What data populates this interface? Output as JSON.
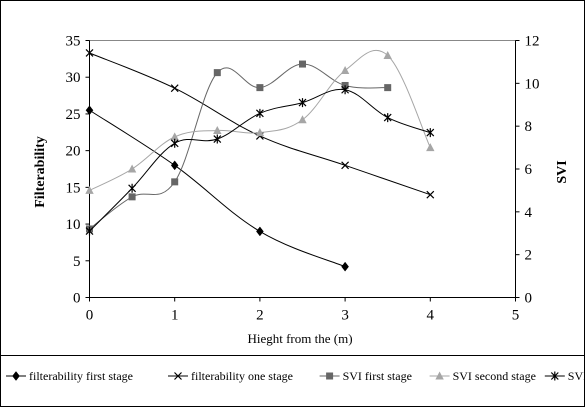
{
  "chart_data": {
    "type": "line",
    "xlabel": "Hieght from the (m)",
    "ylabel_left": "Filterability",
    "ylabel_right": "SVI",
    "xlim": [
      0,
      5
    ],
    "ylim_left": [
      0,
      35
    ],
    "ylim_right": [
      0,
      12
    ],
    "x_ticks": [
      "0",
      "1",
      "2",
      "3",
      "4",
      "5"
    ],
    "y_left_ticks": [
      "0",
      "5",
      "10",
      "15",
      "20",
      "25",
      "30",
      "35"
    ],
    "y_right_ticks": [
      "0",
      "2",
      "4",
      "6",
      "8",
      "10",
      "12"
    ],
    "grid": false,
    "legend_placement": "bottom",
    "series": [
      {
        "name": "filterability first stage",
        "axis": "left",
        "marker": "diamond",
        "color": "#000000",
        "points": [
          [
            0,
            25.5
          ],
          [
            1,
            18
          ],
          [
            2,
            9
          ],
          [
            3,
            4.2
          ]
        ]
      },
      {
        "name": "filterability one stage",
        "axis": "left",
        "marker": "x",
        "color": "#000000",
        "points": [
          [
            0,
            33.3
          ],
          [
            1,
            28.5
          ],
          [
            2,
            22
          ],
          [
            3,
            18
          ],
          [
            4,
            14
          ]
        ]
      },
      {
        "name": "SVI first stage",
        "axis": "right",
        "marker": "square",
        "color": "#666666",
        "points": [
          [
            0,
            3.2
          ],
          [
            0.5,
            4.7
          ],
          [
            1,
            5.4
          ],
          [
            1.5,
            10.5
          ],
          [
            2,
            9.8
          ],
          [
            2.5,
            10.9
          ],
          [
            3,
            9.9
          ],
          [
            3.5,
            9.8
          ]
        ]
      },
      {
        "name": "SVI second stage",
        "axis": "right",
        "marker": "triangle",
        "color": "#a6a6a6",
        "points": [
          [
            0,
            5
          ],
          [
            0.5,
            6
          ],
          [
            1,
            7.5
          ],
          [
            1.5,
            7.8
          ],
          [
            2,
            7.7
          ],
          [
            2.5,
            8.3
          ],
          [
            3,
            10.6
          ],
          [
            3.5,
            11.3
          ],
          [
            4,
            7
          ]
        ]
      },
      {
        "name": "SVI one stage",
        "axis": "right",
        "marker": "star",
        "color": "#000000",
        "points": [
          [
            0,
            3.1
          ],
          [
            0.5,
            5.1
          ],
          [
            1,
            7.2
          ],
          [
            1.5,
            7.4
          ],
          [
            2,
            8.6
          ],
          [
            2.5,
            9.1
          ],
          [
            3,
            9.7
          ],
          [
            3.5,
            8.4
          ],
          [
            4,
            7.7
          ]
        ]
      }
    ]
  }
}
